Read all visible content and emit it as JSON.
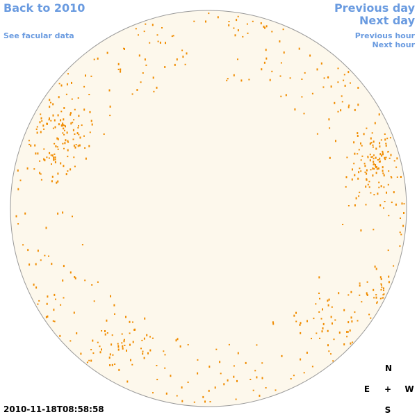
{
  "navigation": {
    "back": "Back to 2010",
    "facular": "See facular data",
    "previous_day": "Previous day",
    "next_day": "Next day",
    "previous_hour": "Previous hour",
    "next_hour": "Next hour"
  },
  "timestamp": "2010-11-18T08:58:58",
  "compass": {
    "north": "N",
    "east": "E",
    "center": "+",
    "west": "W",
    "south": "S"
  }
}
